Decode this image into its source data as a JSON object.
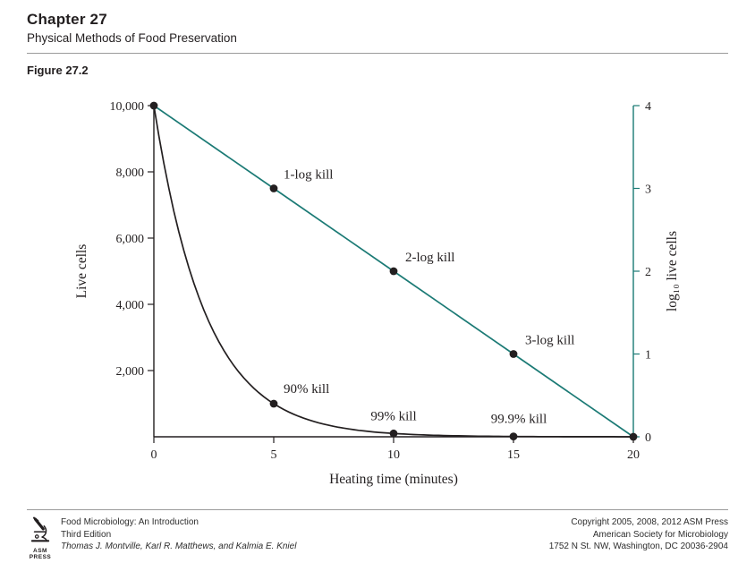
{
  "header": {
    "chapter": "Chapter 27",
    "subtitle": "Physical Methods of Food Preservation",
    "figure_label": "Figure 27.2"
  },
  "chart_data": {
    "type": "line",
    "title": "",
    "xlabel": "Heating time (minutes)",
    "ylabel_left": "Live cells",
    "ylabel_right": "log₁₀ live cells",
    "x_range": [
      0,
      20
    ],
    "x_ticks": [
      0,
      5,
      10,
      15,
      20
    ],
    "y_left_range": [
      0,
      10000
    ],
    "y_left_ticks": [
      {
        "v": 10000,
        "label": "10,000"
      },
      {
        "v": 8000,
        "label": "8,000"
      },
      {
        "v": 6000,
        "label": "6,000"
      },
      {
        "v": 4000,
        "label": "4,000"
      },
      {
        "v": 2000,
        "label": "2,000"
      }
    ],
    "y_right_range": [
      0,
      4
    ],
    "y_right_ticks": [
      4,
      3,
      2,
      1,
      0
    ],
    "grid": false,
    "axis_color": "#231f20",
    "marker_color": "#231f20",
    "legend": "none",
    "series": [
      {
        "name": "log10 live cells (straight line, right axis)",
        "axis": "right",
        "color": "#1b7a75",
        "smooth": false,
        "x": [
          0,
          5,
          10,
          15,
          20
        ],
        "values": [
          4,
          3,
          2,
          1,
          0
        ],
        "markers": [
          0,
          5,
          10,
          15,
          20
        ],
        "labels": [
          {
            "x": 5,
            "y": 3,
            "text": "1-log kill",
            "dx": 11,
            "dy": -11,
            "anchor": "start"
          },
          {
            "x": 10,
            "y": 2,
            "text": "2-log kill",
            "dx": 13,
            "dy": -11,
            "anchor": "start"
          },
          {
            "x": 15,
            "y": 1,
            "text": "3-log kill",
            "dx": 13,
            "dy": -11,
            "anchor": "start"
          }
        ]
      },
      {
        "name": "live cells (exponential survivor curve, left axis)",
        "axis": "left",
        "color": "#231f20",
        "smooth": true,
        "x": [
          0,
          5,
          10,
          15,
          20
        ],
        "values": [
          10000,
          1000,
          100,
          10,
          1
        ],
        "markers": [
          5,
          10,
          15
        ],
        "labels": [
          {
            "x": 5,
            "y": 1000,
            "text": "90% kill",
            "dx": 11,
            "dy": -12,
            "anchor": "start"
          },
          {
            "x": 10,
            "y": 100,
            "text": "99% kill",
            "dx": 0,
            "dy": -15,
            "anchor": "middle"
          },
          {
            "x": 15,
            "y": 10,
            "text": "99.9% kill",
            "dx": 6,
            "dy": -15,
            "anchor": "middle"
          }
        ]
      }
    ]
  },
  "footer": {
    "logo": {
      "line1": "ASM",
      "line2": "PRESS"
    },
    "left_lines": [
      "Food Microbiology: An Introduction",
      "Third Edition",
      "Thomas J. Montville, Karl R. Matthews, and Kalmia E. Kniel"
    ],
    "right_lines": [
      "Copyright 2005, 2008, 2012 ASM Press",
      "American Society for Microbiology",
      "1752 N St. NW, Washington, DC 20036-2904"
    ]
  }
}
